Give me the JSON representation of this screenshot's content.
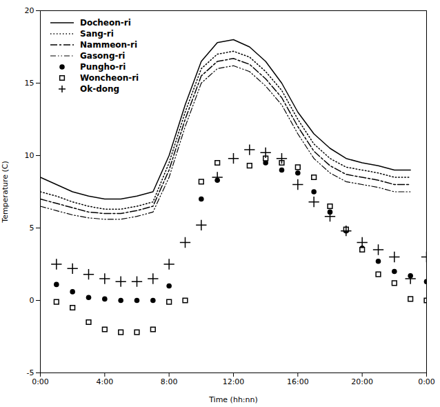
{
  "chart_data": {
    "type": "line",
    "xlabel": "Time (hh:nn)",
    "ylabel": "Temperature (C)",
    "xlim": [
      0,
      24
    ],
    "ylim": [
      -5,
      20
    ],
    "xticks": [
      {
        "value": 0,
        "label": "0:00"
      },
      {
        "value": 4,
        "label": "4:00"
      },
      {
        "value": 8,
        "label": "8:00"
      },
      {
        "value": 12,
        "label": "12:00"
      },
      {
        "value": 16,
        "label": "16:00"
      },
      {
        "value": 20,
        "label": "20:00"
      },
      {
        "value": 24,
        "label": "0:00"
      }
    ],
    "yticks": [
      -5,
      0,
      5,
      10,
      15,
      20
    ],
    "grid": false,
    "legend": "upper left",
    "series": [
      {
        "name": "Docheon-ri",
        "type": "line",
        "color": "#000000",
        "line_style": "solid",
        "x": [
          0,
          1,
          2,
          3,
          4,
          5,
          6,
          7,
          8,
          9,
          10,
          11,
          12,
          13,
          14,
          15,
          16,
          17,
          18,
          19,
          20,
          21,
          22,
          23
        ],
        "values": [
          8.5,
          8.0,
          7.5,
          7.2,
          7.0,
          7.0,
          7.2,
          7.5,
          10.0,
          13.5,
          16.5,
          17.8,
          18.0,
          17.5,
          16.5,
          15.0,
          13.0,
          11.5,
          10.5,
          9.8,
          9.5,
          9.3,
          9.0,
          9.0
        ]
      },
      {
        "name": "Sang-ri",
        "type": "line",
        "color": "#000000",
        "line_style": "dotted",
        "x": [
          0,
          1,
          2,
          3,
          4,
          5,
          6,
          7,
          8,
          9,
          10,
          11,
          12,
          13,
          14,
          15,
          16,
          17,
          18,
          19,
          20,
          21,
          22,
          23
        ],
        "values": [
          7.5,
          7.2,
          6.8,
          6.5,
          6.3,
          6.3,
          6.5,
          6.8,
          9.5,
          13.0,
          16.0,
          17.0,
          17.2,
          16.8,
          15.8,
          14.5,
          12.5,
          10.8,
          9.8,
          9.2,
          9.0,
          8.8,
          8.5,
          8.5
        ]
      },
      {
        "name": "Nammeon-ri",
        "type": "line",
        "color": "#000000",
        "line_style": "dashdot",
        "x": [
          0,
          1,
          2,
          3,
          4,
          5,
          6,
          7,
          8,
          9,
          10,
          11,
          12,
          13,
          14,
          15,
          16,
          17,
          18,
          19,
          20,
          21,
          22,
          23
        ],
        "values": [
          7.0,
          6.7,
          6.4,
          6.1,
          6.0,
          6.0,
          6.2,
          6.5,
          9.0,
          12.5,
          15.5,
          16.5,
          16.7,
          16.3,
          15.3,
          14.0,
          12.0,
          10.3,
          9.3,
          8.7,
          8.5,
          8.3,
          8.0,
          8.0
        ]
      },
      {
        "name": "Gasong-ri",
        "type": "line",
        "color": "#000000",
        "line_style": "dashdotdot",
        "x": [
          0,
          1,
          2,
          3,
          4,
          5,
          6,
          7,
          8,
          9,
          10,
          11,
          12,
          13,
          14,
          15,
          16,
          17,
          18,
          19,
          20,
          21,
          22,
          23
        ],
        "values": [
          6.5,
          6.2,
          5.9,
          5.7,
          5.6,
          5.6,
          5.8,
          6.1,
          8.5,
          12.0,
          15.0,
          16.0,
          16.2,
          15.8,
          14.8,
          13.5,
          11.5,
          9.8,
          8.8,
          8.2,
          8.0,
          7.8,
          7.5,
          7.5
        ]
      },
      {
        "name": "Pungho-ri",
        "type": "scatter",
        "color": "#000000",
        "marker": "circle",
        "x": [
          1,
          2,
          3,
          4,
          5,
          6,
          7,
          8,
          10,
          11,
          13,
          14,
          15,
          16,
          17,
          18,
          19,
          20,
          21,
          22,
          23,
          24
        ],
        "values": [
          1.1,
          0.6,
          0.2,
          0.1,
          0.0,
          0.0,
          0.0,
          1.0,
          7.0,
          8.3,
          9.3,
          9.5,
          9.0,
          8.8,
          7.5,
          6.1,
          4.8,
          3.6,
          2.7,
          2.0,
          1.7,
          1.3
        ]
      },
      {
        "name": "Woncheon-ri",
        "type": "scatter",
        "color": "#000000",
        "marker": "open_square",
        "x": [
          1,
          2,
          3,
          4,
          5,
          6,
          7,
          8,
          9,
          10,
          11,
          13,
          14,
          15,
          16,
          17,
          18,
          19,
          20,
          21,
          22,
          23,
          24
        ],
        "values": [
          -0.1,
          -0.5,
          -1.5,
          -2.0,
          -2.2,
          -2.2,
          -2.0,
          -0.1,
          0.0,
          8.2,
          9.5,
          9.3,
          9.8,
          9.5,
          9.2,
          8.5,
          6.5,
          4.9,
          3.5,
          1.8,
          1.2,
          0.1,
          0.0
        ]
      },
      {
        "name": "Ok-dong",
        "type": "scatter",
        "color": "#000000",
        "marker": "plus",
        "x": [
          1,
          2,
          3,
          4,
          5,
          6,
          7,
          8,
          9,
          10,
          11,
          12,
          13,
          14,
          15,
          16,
          17,
          18,
          19,
          20,
          21,
          22,
          23,
          24
        ],
        "values": [
          2.5,
          2.2,
          1.8,
          1.5,
          1.3,
          1.3,
          1.5,
          2.5,
          4.0,
          5.2,
          8.5,
          9.8,
          10.4,
          10.2,
          9.8,
          8.0,
          6.8,
          5.8,
          4.8,
          4.0,
          3.5,
          3.0,
          1.5,
          3.0
        ]
      }
    ]
  }
}
